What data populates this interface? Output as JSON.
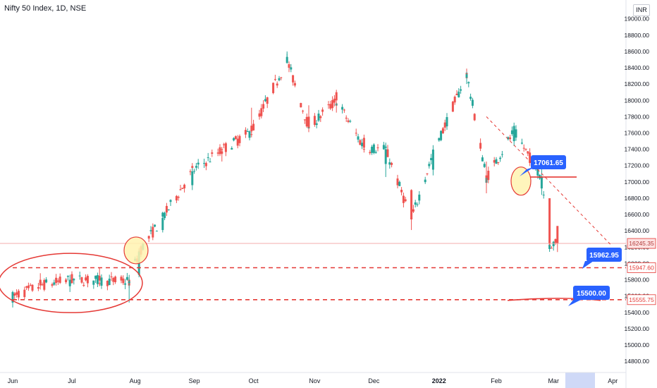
{
  "header": {
    "title": "Nifty 50 Index, 1D, NSE",
    "currency": "INR"
  },
  "chart_data": {
    "type": "candlestick",
    "title": "Nifty 50 Index, 1D, NSE",
    "y_axis": {
      "ticks": [
        "14800.00",
        "15000.00",
        "15200.00",
        "15400.00",
        "15600.00",
        "15800.00",
        "16000.00",
        "16200.00",
        "16400.00",
        "16600.00",
        "16800.00",
        "17000.00",
        "17200.00",
        "17400.00",
        "17600.00",
        "17800.00",
        "18000.00",
        "18200.00",
        "18400.00",
        "18600.00",
        "18800.00",
        "19000.00"
      ],
      "range": [
        14680,
        19110
      ],
      "position": "right"
    },
    "x_axis": {
      "ticks": [
        "Jun",
        "Jul",
        "Aug",
        "Sep",
        "Oct",
        "Nov",
        "Dec",
        "2022",
        "Feb",
        "Mar",
        "Apr"
      ],
      "bold_ticks": [
        "2022"
      ]
    },
    "series": [
      {
        "x": "2021-06-01",
        "y": [
          15560,
          15650,
          15460,
          15590
        ]
      },
      {
        "x": "2021-06-15",
        "y": [
          15800,
          15880,
          15680,
          15730
        ]
      },
      {
        "x": "2021-06-30",
        "y": [
          15720,
          15860,
          15650,
          15800
        ]
      },
      {
        "x": "2021-07-15",
        "y": [
          15850,
          15950,
          15730,
          15790
        ]
      },
      {
        "x": "2021-07-30",
        "y": [
          15760,
          15860,
          15520,
          15780
        ]
      },
      {
        "x": "2021-08-04",
        "y": [
          15860,
          16170,
          15830,
          16140
        ]
      },
      {
        "x": "2021-08-16",
        "y": [
          16410,
          16630,
          16380,
          16560
        ]
      },
      {
        "x": "2021-08-31",
        "y": [
          16960,
          17170,
          16900,
          17130
        ]
      },
      {
        "x": "2021-09-15",
        "y": [
          17400,
          17430,
          17250,
          17390
        ]
      },
      {
        "x": "2021-09-30",
        "y": [
          17690,
          17910,
          17600,
          17620
        ]
      },
      {
        "x": "2021-10-18",
        "y": [
          18460,
          18600,
          18450,
          18490
        ]
      },
      {
        "x": "2021-10-29",
        "y": [
          17800,
          17940,
          17610,
          17670
        ]
      },
      {
        "x": "2021-11-12",
        "y": [
          18100,
          18130,
          17850,
          18000
        ]
      },
      {
        "x": "2021-11-26",
        "y": [
          17540,
          17580,
          17360,
          17420
        ]
      },
      {
        "x": "2021-12-07",
        "y": [
          17220,
          17460,
          17060,
          17400
        ]
      },
      {
        "x": "2021-12-20",
        "y": [
          16900,
          16910,
          16410,
          16540
        ]
      },
      {
        "x": "2021-12-31",
        "y": [
          17150,
          17380,
          17080,
          17350
        ]
      },
      {
        "x": "2022-01-17",
        "y": [
          18280,
          18350,
          18200,
          18320
        ]
      },
      {
        "x": "2022-01-27",
        "y": [
          17080,
          17250,
          16860,
          17050
        ]
      },
      {
        "x": "2022-02-10",
        "y": [
          17500,
          17680,
          17440,
          17620
        ]
      },
      {
        "x": "2022-02-24",
        "y": [
          16920,
          17200,
          16840,
          17060
        ]
      },
      {
        "x": "2022-02-28",
        "y": [
          16800,
          16780,
          16220,
          16240
        ]
      },
      {
        "x": "2022-03-04",
        "y": [
          16460,
          16400,
          16140,
          16245
        ]
      }
    ],
    "horizontal_levels": [
      15947.6,
      15555.75
    ],
    "last_price": 16245.35,
    "annotations": [
      {
        "text": "17061.65",
        "value": 17061.65
      },
      {
        "text": "15962.95",
        "value": 15962.95
      },
      {
        "text": "15500.00",
        "value": 15500.0
      }
    ],
    "price_labels": [
      "16245.35",
      "15947.60",
      "15555.75"
    ],
    "colors": {
      "up": "#26a69a",
      "down": "#ef5350",
      "drawing": "#e53935",
      "callout": "#2962ff",
      "circle_fill": "#fff3b0"
    },
    "grid": false
  }
}
